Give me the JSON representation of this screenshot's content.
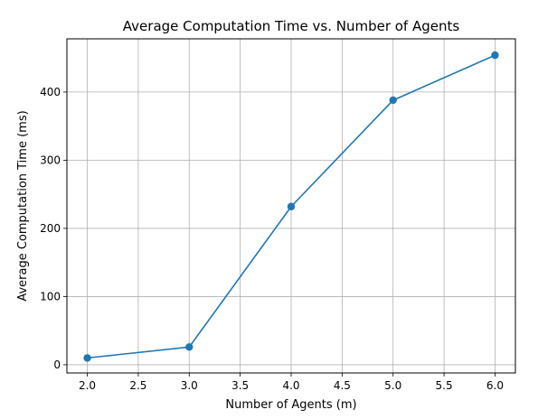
{
  "chart_data": {
    "type": "line",
    "title": "Average Computation Time vs. Number of Agents",
    "xlabel": "Number of Agents (m)",
    "ylabel": "Average Computation Time (ms)",
    "x": [
      2,
      3,
      4,
      5,
      6
    ],
    "series": [
      {
        "values": [
          10,
          26,
          232,
          388,
          454
        ],
        "color": "#1f77b4",
        "marker": "circle"
      }
    ],
    "xlim": [
      1.8,
      6.2
    ],
    "ylim": [
      -12,
      478
    ],
    "xticks": [
      2.0,
      2.5,
      3.0,
      3.5,
      4.0,
      4.5,
      5.0,
      5.5,
      6.0
    ],
    "xtick_labels": [
      "2.0",
      "2.5",
      "3.0",
      "3.5",
      "4.0",
      "4.5",
      "5.0",
      "5.5",
      "6.0"
    ],
    "yticks": [
      0,
      100,
      200,
      300,
      400
    ],
    "ytick_labels": [
      "0",
      "100",
      "200",
      "300",
      "400"
    ],
    "grid": true,
    "legend": false
  }
}
